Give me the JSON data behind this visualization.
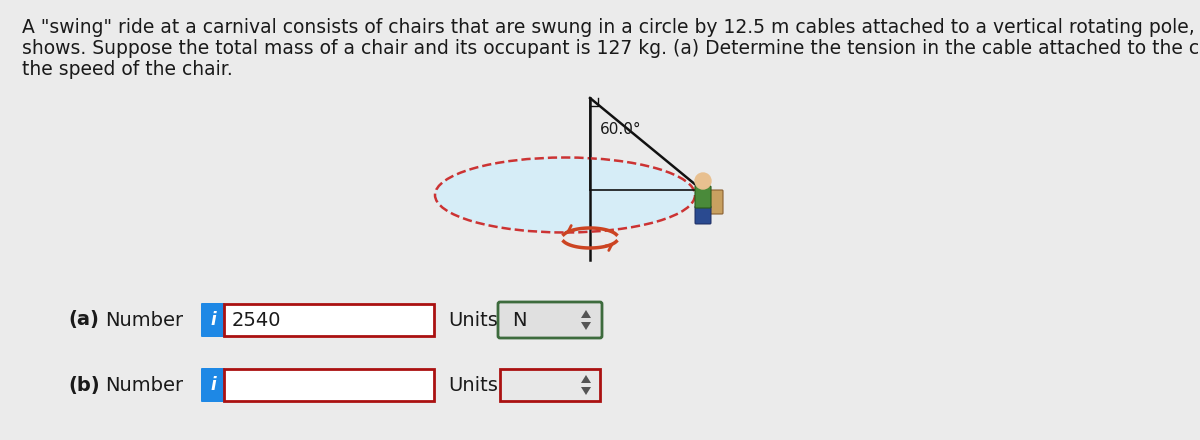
{
  "bg_color": "#ebebeb",
  "description_lines": [
    "A \"swing\" ride at a carnival consists of chairs that are swung in a circle by 12.5 m cables attached to a vertical rotating pole, as the drawing",
    "shows. Suppose the total mass of a chair and its occupant is 127 kg. (a) Determine the tension in the cable attached to the chair. (b) Find",
    "the speed of the chair."
  ],
  "angle_label": "60.0°",
  "text_color": "#1a1a1a",
  "box_border_red": "#aa1111",
  "box_border_green": "#3d6b3d",
  "info_btn_color": "#1e88e5",
  "ellipse_fill": "#d4eef9",
  "ellipse_border": "#cc3333",
  "pole_color": "#111111",
  "cable_color": "#111111",
  "rotation_arrow_color": "#cc4422",
  "value_a": "2540",
  "unit_a": "N"
}
